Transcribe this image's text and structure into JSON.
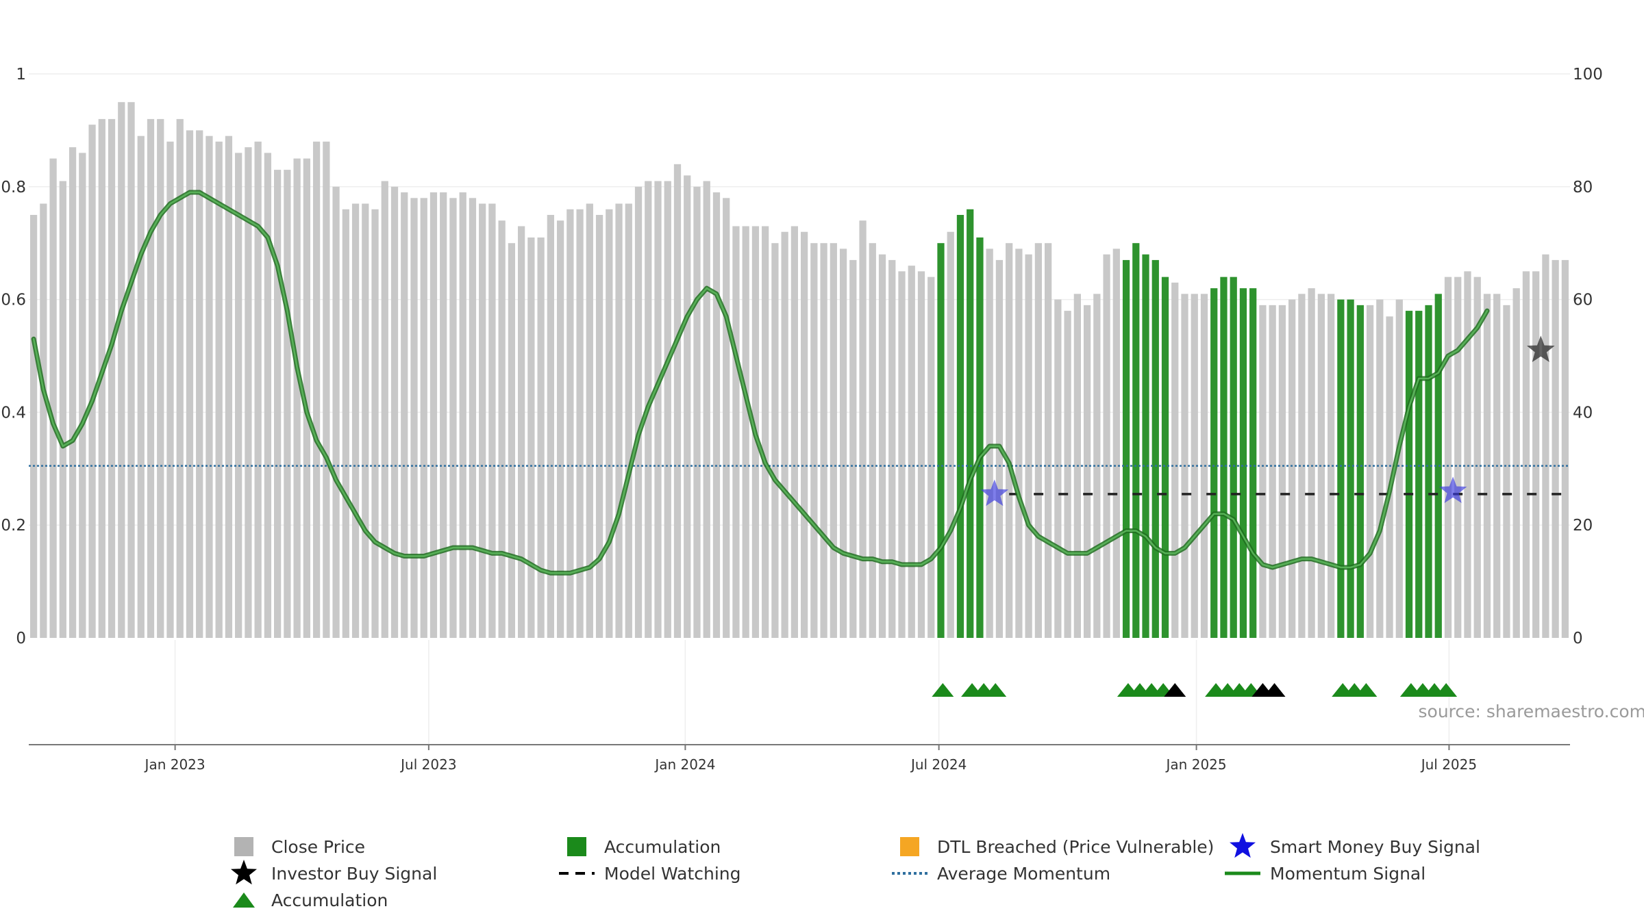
{
  "chart_data": {
    "type": "bar",
    "title": "",
    "source": "source: sharemaestro.com",
    "left_axis": {
      "ylim": [
        0,
        1
      ],
      "ticks": [
        "0",
        "0.2",
        "0.4",
        "0.6",
        "0.8",
        "1"
      ],
      "tick_values": [
        0,
        0.2,
        0.4,
        0.6,
        0.8,
        1
      ]
    },
    "right_axis": {
      "ylim": [
        0,
        100
      ],
      "ticks": [
        "0",
        "20",
        "40",
        "60",
        "80",
        "100"
      ],
      "tick_values": [
        0,
        20,
        40,
        60,
        80,
        100
      ]
    },
    "x_ticks": [
      {
        "label": "Jan 2023",
        "index": 14.5
      },
      {
        "label": "Jul 2023",
        "index": 40.5
      },
      {
        "label": "Jan 2024",
        "index": 66.8
      },
      {
        "label": "Jul 2024",
        "index": 92.8
      },
      {
        "label": "Jan 2025",
        "index": 119.2
      },
      {
        "label": "Jul 2025",
        "index": 145.1
      }
    ],
    "close_price": [
      0.75,
      0.77,
      0.85,
      0.81,
      0.87,
      0.86,
      0.91,
      0.92,
      0.92,
      0.95,
      0.95,
      0.89,
      0.92,
      0.92,
      0.88,
      0.92,
      0.9,
      0.9,
      0.89,
      0.88,
      0.89,
      0.86,
      0.87,
      0.88,
      0.86,
      0.83,
      0.83,
      0.85,
      0.85,
      0.88,
      0.88,
      0.8,
      0.76,
      0.77,
      0.77,
      0.76,
      0.81,
      0.8,
      0.79,
      0.78,
      0.78,
      0.79,
      0.79,
      0.78,
      0.79,
      0.78,
      0.77,
      0.77,
      0.74,
      0.7,
      0.73,
      0.71,
      0.71,
      0.75,
      0.74,
      0.76,
      0.76,
      0.77,
      0.75,
      0.76,
      0.77,
      0.77,
      0.8,
      0.81,
      0.81,
      0.81,
      0.84,
      0.82,
      0.8,
      0.81,
      0.79,
      0.78,
      0.73,
      0.73,
      0.73,
      0.73,
      0.7,
      0.72,
      0.73,
      0.72,
      0.7,
      0.7,
      0.7,
      0.69,
      0.67,
      0.74,
      0.7,
      0.68,
      0.67,
      0.65,
      0.66,
      0.65,
      0.64,
      0.7,
      0.72,
      0.75,
      0.76,
      0.71,
      0.69,
      0.67,
      0.7,
      0.69,
      0.68,
      0.7,
      0.7,
      0.6,
      0.58,
      0.61,
      0.59,
      0.61,
      0.68,
      0.69,
      0.67,
      0.7,
      0.68,
      0.67,
      0.64,
      0.63,
      0.61,
      0.61,
      0.61,
      0.62,
      0.64,
      0.64,
      0.62,
      0.62,
      0.59,
      0.59,
      0.59,
      0.6,
      0.61,
      0.62,
      0.61,
      0.61,
      0.6,
      0.6,
      0.59,
      0.59,
      0.6,
      0.57,
      0.6,
      0.58,
      0.58,
      0.59,
      0.61,
      0.64,
      0.64,
      0.65,
      0.64,
      0.61,
      0.61,
      0.59,
      0.62,
      0.65,
      0.65,
      0.68,
      0.67,
      0.67
    ],
    "accumulation_bars": [
      93,
      95,
      96,
      97,
      112,
      113,
      114,
      115,
      116,
      121,
      122,
      123,
      124,
      125,
      134,
      135,
      136,
      141,
      142,
      143,
      144
    ],
    "momentum_signal": [
      53,
      44,
      38,
      34,
      35,
      38,
      42,
      47,
      52,
      58,
      63,
      68,
      72,
      75,
      77,
      78,
      79,
      79,
      78,
      77,
      76,
      75,
      74,
      73,
      71,
      66,
      58,
      48,
      40,
      35,
      32,
      28,
      25,
      22,
      19,
      17,
      16,
      15,
      14.5,
      14.5,
      14.5,
      15,
      15.5,
      16,
      16,
      16,
      15.5,
      15,
      15,
      14.5,
      14,
      13,
      12,
      11.5,
      11.5,
      11.5,
      12,
      12.5,
      14,
      17,
      22,
      29,
      36,
      41,
      45,
      49,
      53,
      57,
      60,
      62,
      61,
      57,
      50,
      43,
      36,
      31,
      28,
      26,
      24,
      22,
      20,
      18,
      16,
      15,
      14.5,
      14,
      14,
      13.5,
      13.5,
      13,
      13,
      13,
      14,
      16,
      19,
      23,
      28,
      32,
      34,
      34,
      31,
      25,
      20,
      18,
      17,
      16,
      15,
      15,
      15,
      16,
      17,
      18,
      19,
      19,
      18,
      16,
      15,
      15,
      16,
      18,
      20,
      22,
      22,
      21,
      18,
      15,
      13,
      12.5,
      13,
      13.5,
      14,
      14,
      13.5,
      13,
      12.5,
      12.5,
      13,
      15,
      19,
      26,
      34,
      41,
      46,
      46,
      47,
      50,
      51,
      53,
      55,
      58
    ],
    "average_momentum": 30.5,
    "model_watching": {
      "value": 25.5,
      "from_index": 100,
      "to_index": 157
    },
    "smart_money_buy_signals": [
      {
        "index": 98.5,
        "value": 25.5
      },
      {
        "index": 145.5,
        "value": 26
      }
    ],
    "investor_buy_signals": [
      {
        "index": 154.5,
        "value": 51
      }
    ],
    "accumulation_markers": [
      {
        "index": 93.2,
        "color": "green"
      },
      {
        "index": 96.2,
        "color": "green"
      },
      {
        "index": 97.4,
        "color": "green"
      },
      {
        "index": 98.6,
        "color": "green"
      },
      {
        "index": 112.2,
        "color": "green"
      },
      {
        "index": 113.4,
        "color": "green"
      },
      {
        "index": 114.6,
        "color": "green"
      },
      {
        "index": 115.8,
        "color": "green"
      },
      {
        "index": 117.0,
        "color": "black"
      },
      {
        "index": 121.2,
        "color": "green"
      },
      {
        "index": 122.4,
        "color": "green"
      },
      {
        "index": 123.6,
        "color": "green"
      },
      {
        "index": 124.8,
        "color": "green"
      },
      {
        "index": 126.0,
        "color": "black"
      },
      {
        "index": 127.2,
        "color": "black"
      },
      {
        "index": 134.2,
        "color": "green"
      },
      {
        "index": 135.4,
        "color": "green"
      },
      {
        "index": 136.6,
        "color": "green"
      },
      {
        "index": 141.2,
        "color": "green"
      },
      {
        "index": 142.4,
        "color": "green"
      },
      {
        "index": 143.6,
        "color": "green"
      },
      {
        "index": 144.8,
        "color": "green"
      }
    ],
    "legend": [
      {
        "label": "Close Price",
        "symbol": "square",
        "color": "#b3b3b3"
      },
      {
        "label": "Accumulation",
        "symbol": "square",
        "color": "#1b8a1b"
      },
      {
        "label": "DTL Breached (Price Vulnerable)",
        "symbol": "square",
        "color": "#f5a623"
      },
      {
        "label": "Smart Money Buy Signal",
        "symbol": "star",
        "color": "#1010e0"
      },
      {
        "label": "Investor Buy Signal",
        "symbol": "star",
        "color": "#000000"
      },
      {
        "label": "Model Watching",
        "symbol": "dash",
        "color": "#000000"
      },
      {
        "label": "Average Momentum",
        "symbol": "dotted",
        "color": "#2f6f9f"
      },
      {
        "label": "Momentum Signal",
        "symbol": "line",
        "color": "#1b8a1b"
      },
      {
        "label": "Accumulation",
        "symbol": "triangle",
        "color": "#1b8a1b"
      }
    ],
    "colors": {
      "close_bar": "#c8c8c8",
      "accum_bar": "#2e932e",
      "momentum": "#2f8a2f",
      "avg_momentum": "#2f6f9f",
      "grid": "#eeeeee",
      "axis": "#777777",
      "text": "#333333",
      "source": "#9a9a9a"
    }
  }
}
